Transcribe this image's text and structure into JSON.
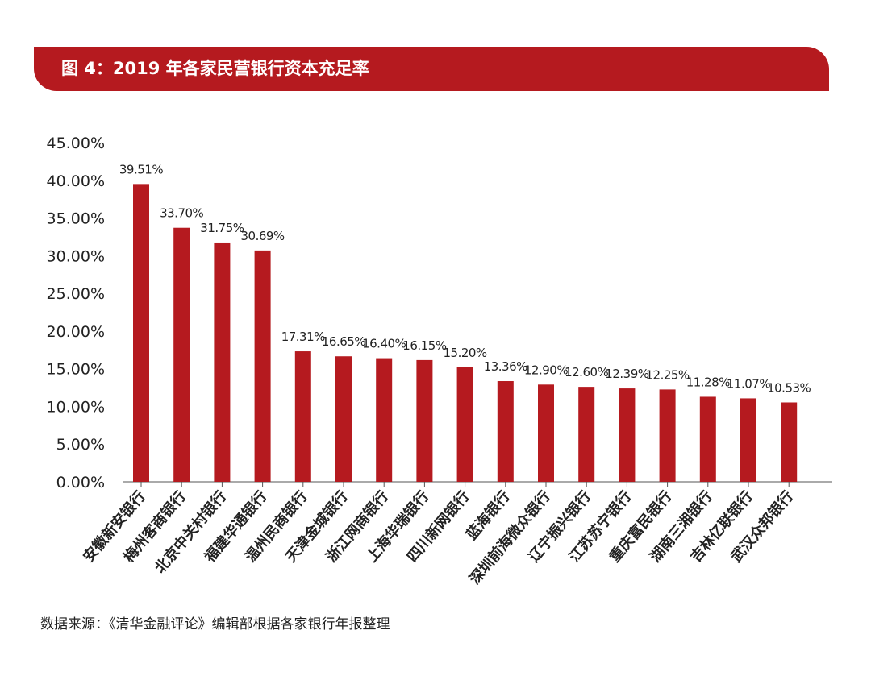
{
  "header": {
    "title": "图 4：2019 年各家民营银行资本充足率"
  },
  "source": "数据来源：《清华金融评论》编辑部根据各家银行年报整理",
  "colors": {
    "bar": "#b51a1f",
    "banner": "#b51a1f",
    "text": "#222222"
  },
  "chart_data": {
    "type": "bar",
    "title": "图 4：2019 年各家民营银行资本充足率",
    "xlabel": "",
    "ylabel": "",
    "ylim": [
      0,
      45
    ],
    "yticks": [
      "0.00%",
      "5.00%",
      "10.00%",
      "15.00%",
      "20.00%",
      "25.00%",
      "30.00%",
      "35.00%",
      "40.00%",
      "45.00%"
    ],
    "categories": [
      "安徽新安银行",
      "梅州客商银行",
      "北京中关村银行",
      "福建华通银行",
      "温州民商银行",
      "天津金城银行",
      "浙江网商银行",
      "上海华瑞银行",
      "四川新网银行",
      "蓝海银行",
      "深圳前海微众银行",
      "辽宁振兴银行",
      "江苏苏宁银行",
      "重庆富民银行",
      "湖南三湘银行",
      "吉林亿联银行",
      "武汉众邦银行"
    ],
    "values": [
      39.51,
      33.7,
      31.75,
      30.69,
      17.31,
      16.65,
      16.4,
      16.15,
      15.2,
      13.36,
      12.9,
      12.6,
      12.39,
      12.25,
      11.28,
      11.07,
      10.53
    ],
    "labels": [
      "39.51%",
      "33.70%",
      "31.75%",
      "30.69%",
      "17.31%",
      "16.65%",
      "16.40%",
      "16.15%",
      "15.20%",
      "13.36%",
      "12.90%",
      "12.60%",
      "12.39%",
      "12.25%",
      "11.28%",
      "11.07%",
      "10.53%"
    ],
    "grid": false,
    "legend": "none"
  }
}
